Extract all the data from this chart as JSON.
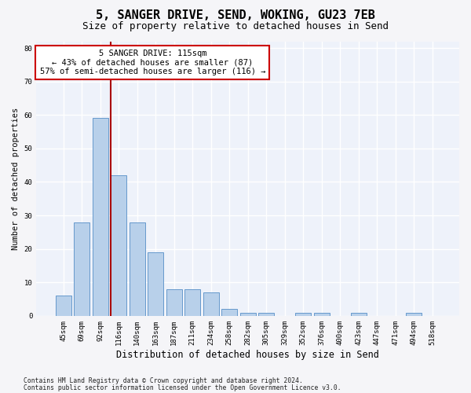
{
  "title1": "5, SANGER DRIVE, SEND, WOKING, GU23 7EB",
  "title2": "Size of property relative to detached houses in Send",
  "xlabel": "Distribution of detached houses by size in Send",
  "ylabel": "Number of detached properties",
  "categories": [
    "45sqm",
    "69sqm",
    "92sqm",
    "116sqm",
    "140sqm",
    "163sqm",
    "187sqm",
    "211sqm",
    "234sqm",
    "258sqm",
    "282sqm",
    "305sqm",
    "329sqm",
    "352sqm",
    "376sqm",
    "400sqm",
    "423sqm",
    "447sqm",
    "471sqm",
    "494sqm",
    "518sqm"
  ],
  "values": [
    6,
    28,
    59,
    42,
    28,
    19,
    8,
    8,
    7,
    2,
    1,
    1,
    0,
    1,
    1,
    0,
    1,
    0,
    0,
    1,
    0
  ],
  "bar_color": "#b8d0ea",
  "bar_edge_color": "#6699cc",
  "vline_color": "#aa0000",
  "annotation_line1": "5 SANGER DRIVE: 115sqm",
  "annotation_line2": "← 43% of detached houses are smaller (87)",
  "annotation_line3": "57% of semi-detached houses are larger (116) →",
  "annotation_box_color": "#ffffff",
  "annotation_box_edge": "#cc0000",
  "ylim": [
    0,
    82
  ],
  "yticks": [
    0,
    10,
    20,
    30,
    40,
    50,
    60,
    70,
    80
  ],
  "bg_color": "#eef2fa",
  "grid_color": "#ffffff",
  "footer1": "Contains HM Land Registry data © Crown copyright and database right 2024.",
  "footer2": "Contains public sector information licensed under the Open Government Licence v3.0.",
  "title1_fontsize": 11,
  "title2_fontsize": 9,
  "xlabel_fontsize": 8.5,
  "ylabel_fontsize": 7.5,
  "tick_fontsize": 6.5,
  "annotation_fontsize": 7.5,
  "footer_fontsize": 5.8
}
